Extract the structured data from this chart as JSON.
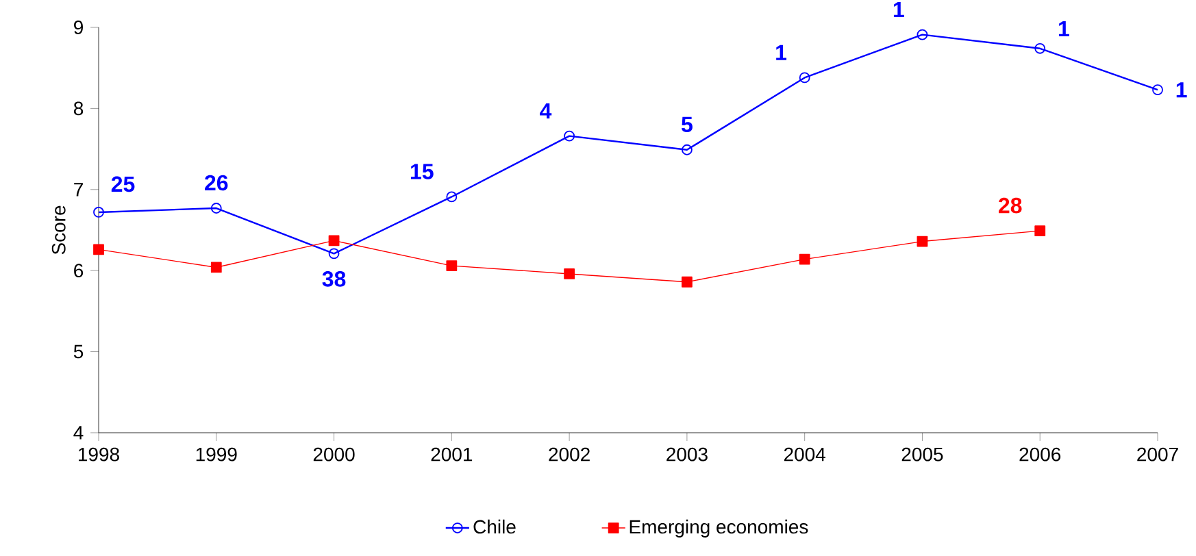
{
  "chart_data": {
    "type": "line",
    "ylabel": "Score",
    "x": [
      1998,
      1999,
      2000,
      2001,
      2002,
      2003,
      2004,
      2005,
      2006,
      2007
    ],
    "xlim": [
      1998,
      2007
    ],
    "xticks": [
      1998,
      1999,
      2000,
      2001,
      2002,
      2003,
      2004,
      2005,
      2006,
      2007
    ],
    "ylim": [
      4,
      9
    ],
    "yticks": [
      4,
      5,
      6,
      7,
      8,
      9
    ],
    "grid": false,
    "legend": "bottom",
    "series": [
      {
        "name": "Chile",
        "color": "#0000ff",
        "marker": "circle",
        "values": [
          6.72,
          6.77,
          6.21,
          6.91,
          7.66,
          7.49,
          8.38,
          8.91,
          8.74,
          8.23
        ]
      },
      {
        "name": "Emerging economies",
        "color": "#ff0000",
        "marker": "square",
        "values": [
          6.26,
          6.04,
          6.37,
          6.06,
          5.96,
          5.86,
          6.14,
          6.36,
          6.49,
          null
        ]
      }
    ],
    "annotations": [
      {
        "text": "25",
        "x": 1998,
        "y": 6.72
      },
      {
        "text": "26",
        "x": 1999,
        "y": 6.77
      },
      {
        "text": "38",
        "x": 2000,
        "y": 6.21
      },
      {
        "text": "15",
        "x": 2001,
        "y": 6.91
      },
      {
        "text": "4",
        "x": 2002,
        "y": 7.66
      },
      {
        "text": "5",
        "x": 2003,
        "y": 7.49
      },
      {
        "text": "1",
        "x": 2004,
        "y": 8.38
      },
      {
        "text": "1",
        "x": 2005,
        "y": 8.91
      },
      {
        "text": "1",
        "x": 2006,
        "y": 8.74
      },
      {
        "text": "1",
        "x": 2007,
        "y": 8.23
      },
      {
        "text": "28",
        "x": 2006,
        "y": 6.49
      }
    ]
  }
}
